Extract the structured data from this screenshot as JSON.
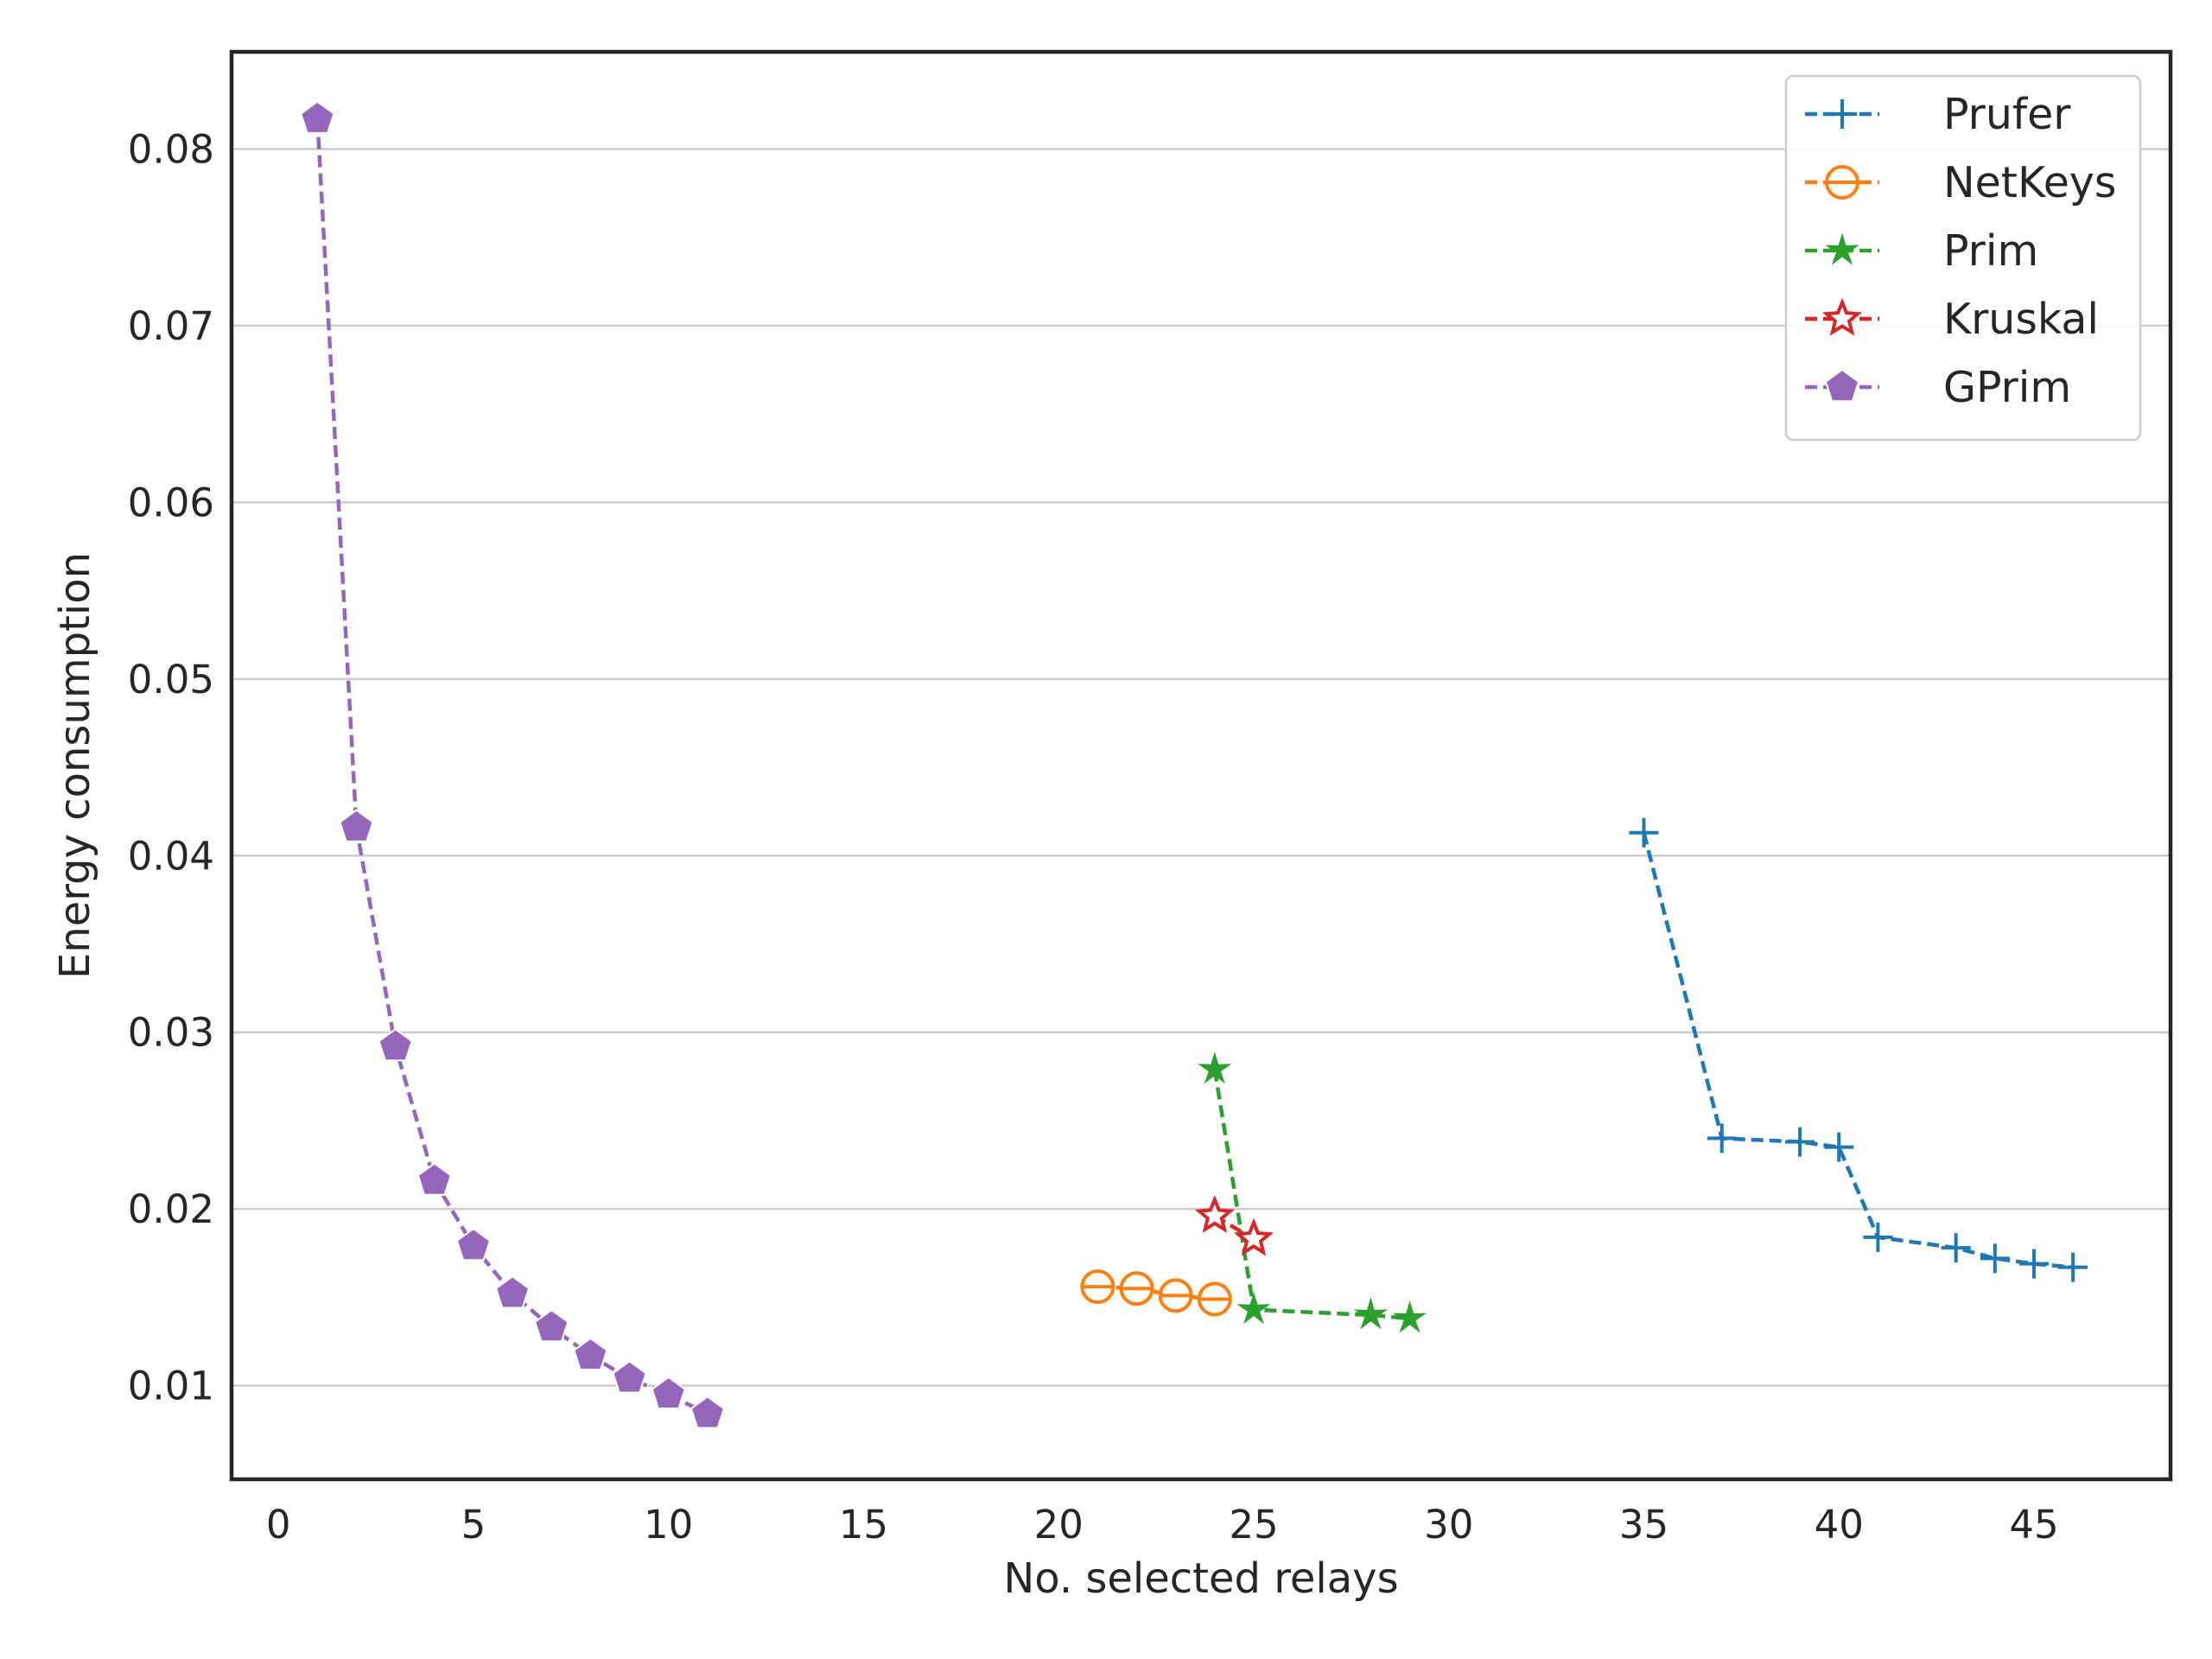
{
  "chart_data": {
    "type": "line",
    "title": "",
    "xlabel": "No. selected relays",
    "ylabel": "Energy consumption",
    "xlim": [
      -1.2,
      48.5
    ],
    "ylim": [
      0.0047,
      0.0855
    ],
    "xticks": [
      0,
      5,
      10,
      15,
      20,
      25,
      30,
      35,
      40,
      45
    ],
    "yticks": [
      0.01,
      0.02,
      0.03,
      0.04,
      0.05,
      0.06,
      0.07,
      0.08
    ],
    "ytick_labels": [
      "0.01",
      "0.02",
      "0.03",
      "0.04",
      "0.05",
      "0.06",
      "0.07",
      "0.08"
    ],
    "grid": "horizontal",
    "legend_position": "top-right",
    "series": [
      {
        "name": "Prufer",
        "color": "#1f77b4",
        "marker": "plus",
        "x": [
          35,
          37,
          39,
          40,
          41,
          43,
          44,
          45,
          46
        ],
        "y": [
          0.0413,
          0.024,
          0.0238,
          0.0235,
          0.0184,
          0.0178,
          0.0172,
          0.0169,
          0.0167
        ]
      },
      {
        "name": "NetKeys",
        "color": "#ff7f0e",
        "marker": "circle-line",
        "x": [
          21,
          22,
          23,
          24
        ],
        "y": [
          0.0156,
          0.0155,
          0.0151,
          0.0149
        ]
      },
      {
        "name": "Prim",
        "color": "#2ca02c",
        "marker": "star",
        "x": [
          24,
          25,
          28,
          29
        ],
        "y": [
          0.0279,
          0.0143,
          0.014,
          0.0138
        ]
      },
      {
        "name": "Kruskal",
        "color": "#d62728",
        "marker": "star-open",
        "x": [
          24,
          25
        ],
        "y": [
          0.0196,
          0.0183
        ]
      },
      {
        "name": "GPrim",
        "color": "#9467bd",
        "marker": "pentagon",
        "x": [
          1,
          2,
          3,
          4,
          5,
          6,
          7,
          8,
          9,
          10,
          11
        ],
        "y": [
          0.0817,
          0.0416,
          0.0292,
          0.0216,
          0.0179,
          0.0152,
          0.0133,
          0.0117,
          0.0104,
          0.0095,
          0.0084
        ]
      }
    ]
  }
}
